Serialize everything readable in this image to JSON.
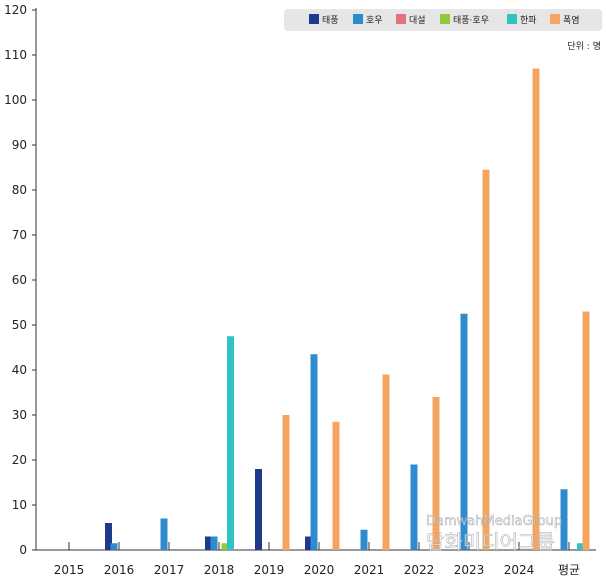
{
  "chart_data": {
    "type": "bar",
    "title": "",
    "xlabel": "",
    "ylabel": "",
    "unit_label": "단위 : 명",
    "ylim": [
      0,
      120
    ],
    "yticks": [
      0,
      10,
      20,
      30,
      40,
      50,
      60,
      70,
      80,
      90,
      100,
      110,
      120
    ],
    "grid": false,
    "legend_position": "top-right",
    "categories": [
      "2015",
      "2016",
      "2017",
      "2018",
      "2019",
      "2020",
      "2021",
      "2022",
      "2023",
      "2024",
      "평균"
    ],
    "series": [
      {
        "name": "태풍",
        "color": "#1f3a8a",
        "values": [
          0,
          6,
          0,
          3,
          18,
          3,
          0,
          0,
          0,
          0,
          0
        ]
      },
      {
        "name": "호우",
        "color": "#2e8bd0",
        "values": [
          0,
          1.5,
          7,
          3,
          0,
          43.5,
          4.5,
          19,
          52.5,
          0,
          13.5
        ]
      },
      {
        "name": "대설",
        "color": "#e8707e",
        "values": [
          0,
          0,
          0,
          0,
          0,
          0,
          0,
          0,
          0,
          0,
          0
        ]
      },
      {
        "name": "태풍·호우",
        "color": "#93c83e",
        "values": [
          0,
          0,
          0,
          1.5,
          0,
          0,
          0,
          0,
          0,
          0,
          0
        ]
      },
      {
        "name": "한파",
        "color": "#32c2bf",
        "values": [
          0,
          0,
          0,
          47.5,
          0,
          0,
          0,
          0,
          0,
          0,
          1.5
        ]
      },
      {
        "name": "폭염",
        "color": "#f3a561",
        "values": [
          0,
          0,
          0,
          0,
          30,
          28.5,
          39,
          34,
          84.5,
          107,
          53
        ]
      }
    ]
  },
  "watermark": {
    "line1": "DamwahMediaGroup",
    "line2": "담화미디어그룹"
  }
}
